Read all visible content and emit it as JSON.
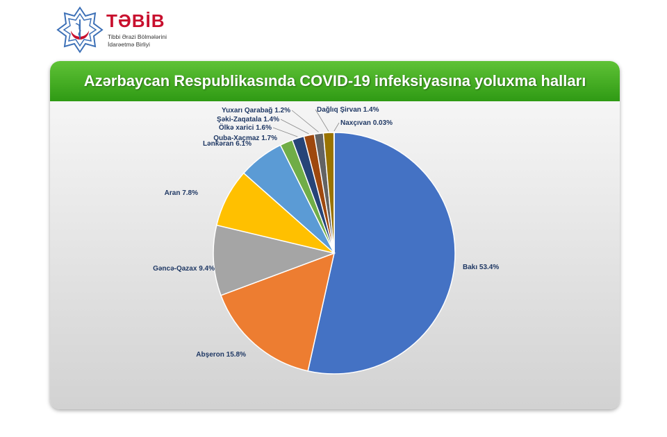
{
  "logo": {
    "name": "TƏBİB",
    "subtitle_line1": "Tibbi Ərazi Bölmələrini",
    "subtitle_line2": "İdarəetmə Birliyi"
  },
  "chart_data": {
    "type": "pie",
    "title": "Azərbaycan Respublikasında COVID-19 infeksiyasına yoluxma halları",
    "slices": [
      {
        "label": "Bakı",
        "value": 53.4,
        "text": "Bakı  53.4%",
        "color": "#4472c4"
      },
      {
        "label": "Abşeron",
        "value": 15.8,
        "text": "Abşeron 15.8%",
        "color": "#ed7d31"
      },
      {
        "label": "Gəncə-Qazax",
        "value": 9.4,
        "text": "Gəncə-Qazax 9.4%",
        "color": "#a5a5a5"
      },
      {
        "label": "Aran",
        "value": 7.8,
        "text": "Aran 7.8%",
        "color": "#ffc000"
      },
      {
        "label": "Lənkəran",
        "value": 6.1,
        "text": "Lənkəran 6.1%",
        "color": "#5b9bd5"
      },
      {
        "label": "Quba-Xaçmaz",
        "value": 1.7,
        "text": "Quba-Xaçmaz 1.7%",
        "color": "#70ad47"
      },
      {
        "label": "Ölkə xarici",
        "value": 1.6,
        "text": "Ölkə xarici 1.6%",
        "color": "#264478"
      },
      {
        "label": "Şəki-Zaqatala",
        "value": 1.4,
        "text": "Şəki-Zaqatala 1.4%",
        "color": "#9e480e"
      },
      {
        "label": "Yuxarı Qarabağ",
        "value": 1.2,
        "text": "Yuxarı Qarabağ 1.2%",
        "color": "#636363"
      },
      {
        "label": "Dağlıq Şirvan",
        "value": 1.4,
        "text": "Dağlıq Şirvan 1.4%",
        "color": "#997300"
      },
      {
        "label": "Naxçıvan",
        "value": 0.03,
        "text": "Naxçıvan 0.03%",
        "color": "#255e91"
      }
    ]
  }
}
